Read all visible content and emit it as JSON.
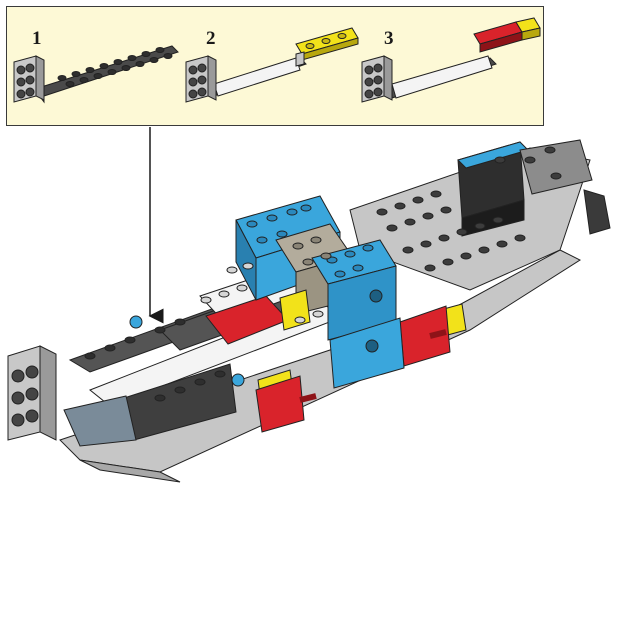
{
  "callout": {
    "steps": [
      {
        "number": "1",
        "part": "dark-gray-plate-with-angle-bracket"
      },
      {
        "number": "2",
        "part": "white-tile-yellow-plate-assembly"
      },
      {
        "number": "3",
        "part": "white-tile-red-tile-assembly"
      }
    ]
  },
  "colors": {
    "callout_bg": "#fdf9d6",
    "brick_blue": "#3aa6dc",
    "brick_red": "#d9232b",
    "brick_yellow": "#f2e21a",
    "brick_light_gray": "#c6c6c6",
    "brick_dark_gray": "#545454",
    "brick_white": "#f4f4f4"
  }
}
